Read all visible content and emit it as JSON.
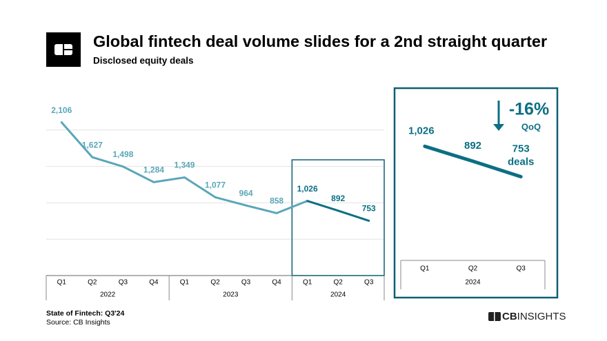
{
  "header": {
    "title": "Global fintech deal volume slides for a 2nd straight quarter",
    "subtitle": "Disclosed equity deals"
  },
  "chart_data": [
    {
      "type": "line",
      "categories": [
        "Q1",
        "Q2",
        "Q3",
        "Q4",
        "Q1",
        "Q2",
        "Q3",
        "Q4",
        "Q1",
        "Q2",
        "Q3"
      ],
      "years": [
        "2022",
        "2022",
        "2022",
        "2022",
        "2023",
        "2023",
        "2023",
        "2023",
        "2024",
        "2024",
        "2024"
      ],
      "values": [
        2106,
        1627,
        1498,
        1284,
        1349,
        1077,
        964,
        858,
        1026,
        892,
        753
      ],
      "value_labels": [
        "2,106",
        "1,627",
        "1,498",
        "1,284",
        "1,349",
        "1,077",
        "964",
        "858",
        "1,026",
        "892",
        "753"
      ],
      "color": "#5aa6b9",
      "highlight_color": "#0c6f83",
      "highlight_year": "2024",
      "ylim": [
        0,
        2500
      ],
      "yticks": [
        0,
        500,
        1000,
        1500,
        2000
      ],
      "grid": true
    },
    {
      "type": "line",
      "categories": [
        "Q1",
        "Q2",
        "Q3"
      ],
      "years": [
        "2024",
        "2024",
        "2024"
      ],
      "values": [
        1026,
        892,
        753
      ],
      "value_labels": [
        "1,026",
        "892",
        "753"
      ],
      "unit_label": "deals",
      "change_label": "-16%",
      "change_period": "QoQ",
      "color": "#0c6f83",
      "ylim": [
        0,
        1400
      ]
    }
  ],
  "footer": {
    "report": "State of Fintech: Q3'24",
    "source": "Source: CB Insights",
    "logo_bold": "CB",
    "logo_text": "INSIGHTS"
  }
}
